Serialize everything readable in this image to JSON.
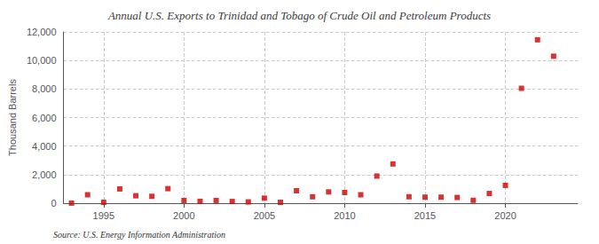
{
  "chart_data": {
    "type": "scatter",
    "title": "Annual U.S. Exports to Trinidad and Tobago of Crude Oil and Petroleum Products",
    "ylabel": "Thousand Barrels",
    "source": "Source: U.S. Energy Information Administration",
    "x": [
      1993,
      1994,
      1995,
      1996,
      1997,
      1998,
      1999,
      2000,
      2001,
      2002,
      2003,
      2004,
      2005,
      2006,
      2007,
      2008,
      2009,
      2010,
      2011,
      2012,
      2013,
      2014,
      2015,
      2016,
      2017,
      2018,
      2019,
      2020,
      2021,
      2022,
      2023
    ],
    "values": [
      5,
      590,
      60,
      1000,
      520,
      480,
      1020,
      190,
      130,
      190,
      120,
      90,
      350,
      60,
      870,
      450,
      790,
      750,
      590,
      1900,
      2750,
      450,
      420,
      420,
      400,
      200,
      680,
      1250,
      8050,
      11450,
      10300
    ],
    "color": "#cc0000",
    "marker": "square",
    "xlim": [
      1992.5,
      2024.5
    ],
    "xticks": [
      1995,
      2000,
      2005,
      2010,
      2015,
      2020
    ],
    "ylim": [
      0,
      12000
    ],
    "yticks": [
      0,
      {
        "value": 2000,
        "label": "2,000"
      },
      {
        "value": 4000,
        "label": "4,000"
      },
      {
        "value": 6000,
        "label": "6,000"
      },
      {
        "value": 8000,
        "label": "8,000"
      },
      {
        "value": 10000,
        "label": "10,000"
      },
      {
        "value": 12000,
        "label": "12,000"
      }
    ],
    "grid": true
  }
}
